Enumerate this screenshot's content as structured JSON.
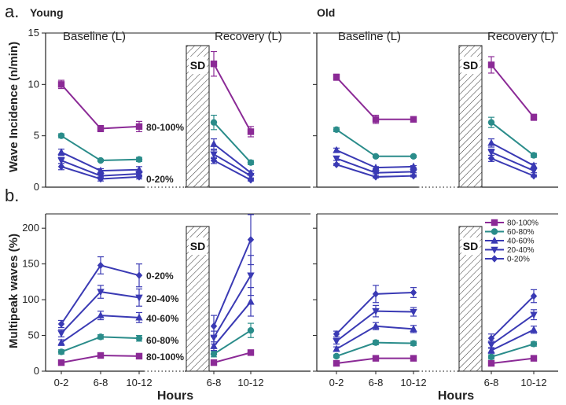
{
  "labels": {
    "panel_a": "a.",
    "panel_b": "b.",
    "young": "Young",
    "old": "Old",
    "baseline": "Baseline (L)",
    "recovery": "Recovery (L)",
    "sd": "SD",
    "ylabel_a": "Wave Incidence (n/min)",
    "ylabel_b": "Multipeak waves (%)",
    "xlabel": "Hours"
  },
  "x_ticks_baseline": [
    "0-2",
    "6-8",
    "10-12"
  ],
  "x_ticks_recovery": [
    "6-8",
    "10-12"
  ],
  "y_ticks_a": [
    "0",
    "5",
    "10",
    "15"
  ],
  "y_ticks_b": [
    "0",
    "50",
    "100",
    "150",
    "200"
  ],
  "annotations_a": [
    "80-100%",
    "0-20%"
  ],
  "annotations_b": [
    "0-20%",
    "20-40%",
    "40-60%",
    "60-80%",
    "80-100%"
  ],
  "legend": [
    "80-100%",
    "60-80%",
    "40-60%",
    "20-40%",
    "0-20%"
  ],
  "colors": {
    "80-100%": "#8b2a96",
    "60-80%": "#2a8c8a",
    "40-60%": "#3a3ab4",
    "20-40%": "#3a3ab4",
    "0-20%": "#3a3ab4"
  },
  "chart_data": [
    {
      "type": "line",
      "panel": "a",
      "group": "Young",
      "ylabel": "Wave Incidence (n/min)",
      "ylim": [
        0,
        15
      ],
      "baseline": {
        "x": [
          "0-2",
          "6-8",
          "10-12"
        ],
        "series": [
          {
            "name": "80-100%",
            "values": [
              10.0,
              5.7,
              5.9
            ],
            "err": [
              0.4,
              0.3,
              0.5
            ],
            "marker": "square"
          },
          {
            "name": "60-80%",
            "values": [
              5.0,
              2.6,
              2.7
            ],
            "err": [
              0.2,
              0.1,
              0.2
            ],
            "marker": "circle"
          },
          {
            "name": "40-60%",
            "values": [
              3.4,
              1.6,
              1.7
            ],
            "err": [
              0.3,
              0.2,
              0.3
            ],
            "marker": "triangle-up"
          },
          {
            "name": "20-40%",
            "values": [
              2.6,
              1.1,
              1.3
            ],
            "err": [
              0.3,
              0.2,
              0.2
            ],
            "marker": "triangle-down"
          },
          {
            "name": "0-20%",
            "values": [
              2.0,
              0.8,
              1.0
            ],
            "err": [
              0.3,
              0.2,
              0.2
            ],
            "marker": "diamond"
          }
        ]
      },
      "recovery": {
        "x": [
          "6-8",
          "10-12"
        ],
        "series": [
          {
            "name": "80-100%",
            "values": [
              12.0,
              5.4
            ],
            "err": [
              1.2,
              0.5
            ],
            "marker": "square"
          },
          {
            "name": "60-80%",
            "values": [
              6.3,
              2.4
            ],
            "err": [
              0.7,
              0.2
            ],
            "marker": "circle"
          },
          {
            "name": "40-60%",
            "values": [
              4.2,
              1.4
            ],
            "err": [
              0.5,
              0.2
            ],
            "marker": "triangle-up"
          },
          {
            "name": "20-40%",
            "values": [
              3.2,
              1.1
            ],
            "err": [
              0.4,
              0.2
            ],
            "marker": "triangle-down"
          },
          {
            "name": "0-20%",
            "values": [
              2.6,
              0.7
            ],
            "err": [
              0.3,
              0.1
            ],
            "marker": "diamond"
          }
        ]
      }
    },
    {
      "type": "line",
      "panel": "a",
      "group": "Old",
      "ylim": [
        0,
        15
      ],
      "baseline": {
        "x": [
          "0-2",
          "6-8",
          "10-12"
        ],
        "series": [
          {
            "name": "80-100%",
            "values": [
              10.7,
              6.6,
              6.6
            ],
            "err": [
              0.3,
              0.4,
              0.2
            ],
            "marker": "square"
          },
          {
            "name": "60-80%",
            "values": [
              5.6,
              3.0,
              3.0
            ],
            "err": [
              0.2,
              0.1,
              0.1
            ],
            "marker": "circle"
          },
          {
            "name": "40-60%",
            "values": [
              3.6,
              1.9,
              2.0
            ],
            "err": [
              0.2,
              0.1,
              0.1
            ],
            "marker": "triangle-up"
          },
          {
            "name": "20-40%",
            "values": [
              2.8,
              1.4,
              1.5
            ],
            "err": [
              0.2,
              0.1,
              0.1
            ],
            "marker": "triangle-down"
          },
          {
            "name": "0-20%",
            "values": [
              2.2,
              1.0,
              1.1
            ],
            "err": [
              0.1,
              0.1,
              0.1
            ],
            "marker": "diamond"
          }
        ]
      },
      "recovery": {
        "x": [
          "6-8",
          "10-12"
        ],
        "series": [
          {
            "name": "80-100%",
            "values": [
              11.9,
              6.8
            ],
            "err": [
              0.8,
              0.3
            ],
            "marker": "square"
          },
          {
            "name": "60-80%",
            "values": [
              6.3,
              3.1
            ],
            "err": [
              0.5,
              0.2
            ],
            "marker": "circle"
          },
          {
            "name": "40-60%",
            "values": [
              4.3,
              2.1
            ],
            "err": [
              0.4,
              0.2
            ],
            "marker": "triangle-up"
          },
          {
            "name": "20-40%",
            "values": [
              3.4,
              1.6
            ],
            "err": [
              0.3,
              0.2
            ],
            "marker": "triangle-down"
          },
          {
            "name": "0-20%",
            "values": [
              2.8,
              1.1
            ],
            "err": [
              0.3,
              0.1
            ],
            "marker": "diamond"
          }
        ]
      }
    },
    {
      "type": "line",
      "panel": "b",
      "group": "Young",
      "ylabel": "Multipeak waves (%)",
      "ylim": [
        0,
        220
      ],
      "baseline": {
        "x": [
          "0-2",
          "6-8",
          "10-12"
        ],
        "series": [
          {
            "name": "80-100%",
            "values": [
              12,
              22,
              21
            ],
            "err": [
              2,
              2,
              2
            ],
            "marker": "square"
          },
          {
            "name": "60-80%",
            "values": [
              27,
              48,
              46
            ],
            "err": [
              3,
              3,
              4
            ],
            "marker": "circle"
          },
          {
            "name": "40-60%",
            "values": [
              40,
              78,
              75
            ],
            "err": [
              4,
              6,
              7
            ],
            "marker": "triangle-up"
          },
          {
            "name": "20-40%",
            "values": [
              53,
              111,
              103
            ],
            "err": [
              5,
              9,
              12
            ],
            "marker": "triangle-down"
          },
          {
            "name": "0-20%",
            "values": [
              66,
              148,
              134
            ],
            "err": [
              5,
              12,
              16
            ],
            "marker": "diamond"
          }
        ]
      },
      "recovery": {
        "x": [
          "6-8",
          "10-12"
        ],
        "series": [
          {
            "name": "80-100%",
            "values": [
              12,
              26
            ],
            "err": [
              2,
              3
            ],
            "marker": "square"
          },
          {
            "name": "60-80%",
            "values": [
              24,
              57
            ],
            "err": [
              4,
              10
            ],
            "marker": "circle"
          },
          {
            "name": "40-60%",
            "values": [
              35,
              97
            ],
            "err": [
              6,
              20
            ],
            "marker": "triangle-up"
          },
          {
            "name": "20-40%",
            "values": [
              47,
              134
            ],
            "err": [
              9,
              28
            ],
            "marker": "triangle-down"
          },
          {
            "name": "0-20%",
            "values": [
              63,
              184
            ],
            "err": [
              15,
              35
            ],
            "marker": "diamond"
          }
        ]
      }
    },
    {
      "type": "line",
      "panel": "b",
      "group": "Old",
      "ylim": [
        0,
        220
      ],
      "baseline": {
        "x": [
          "0-2",
          "6-8",
          "10-12"
        ],
        "series": [
          {
            "name": "80-100%",
            "values": [
              11,
              18,
              18
            ],
            "err": [
              1,
              2,
              2
            ],
            "marker": "square"
          },
          {
            "name": "60-80%",
            "values": [
              21,
              40,
              39
            ],
            "err": [
              2,
              3,
              3
            ],
            "marker": "circle"
          },
          {
            "name": "40-60%",
            "values": [
              31,
              63,
              59
            ],
            "err": [
              3,
              5,
              5
            ],
            "marker": "triangle-up"
          },
          {
            "name": "20-40%",
            "values": [
              42,
              84,
              83
            ],
            "err": [
              4,
              8,
              6
            ],
            "marker": "triangle-down"
          },
          {
            "name": "0-20%",
            "values": [
              52,
              108,
              110
            ],
            "err": [
              4,
              12,
              7
            ],
            "marker": "diamond"
          }
        ]
      },
      "recovery": {
        "x": [
          "6-8",
          "10-12"
        ],
        "series": [
          {
            "name": "80-100%",
            "values": [
              11,
              18
            ],
            "err": [
              2,
              2
            ],
            "marker": "square"
          },
          {
            "name": "60-80%",
            "values": [
              20,
              38
            ],
            "err": [
              3,
              3
            ],
            "marker": "circle"
          },
          {
            "name": "40-60%",
            "values": [
              29,
              58
            ],
            "err": [
              4,
              5
            ],
            "marker": "triangle-up"
          },
          {
            "name": "20-40%",
            "values": [
              37,
              79
            ],
            "err": [
              5,
              7
            ],
            "marker": "triangle-down"
          },
          {
            "name": "0-20%",
            "values": [
              46,
              105
            ],
            "err": [
              6,
              9
            ],
            "marker": "diamond"
          }
        ]
      }
    }
  ]
}
